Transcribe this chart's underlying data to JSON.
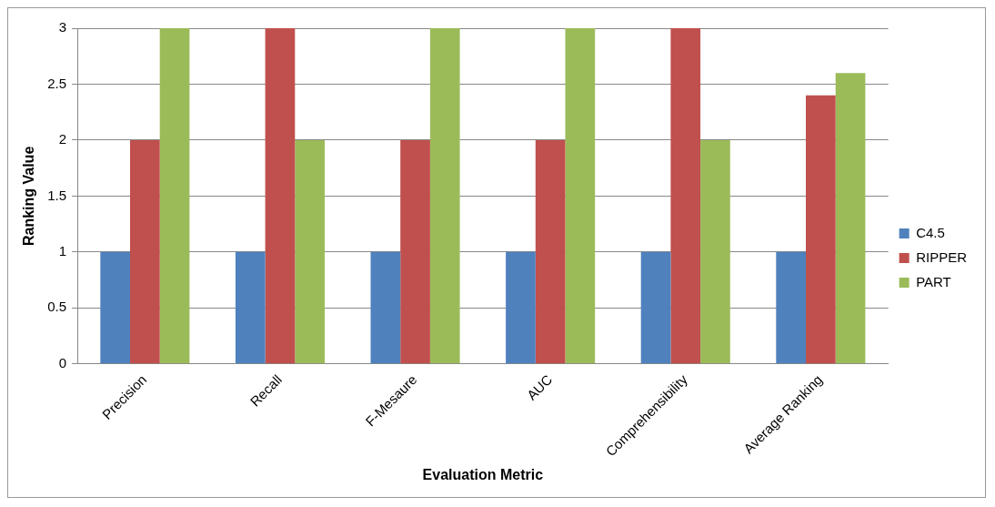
{
  "chart_data": {
    "type": "bar",
    "categories": [
      "Precision",
      "Recall",
      "F-Mesaure",
      "AUC",
      "Comprehensibility",
      "Average Ranking"
    ],
    "series": [
      {
        "name": "C4.5",
        "color": "#4f81bd",
        "values": [
          1,
          1,
          1,
          1,
          1,
          1
        ]
      },
      {
        "name": "RIPPER",
        "color": "#c0504d",
        "values": [
          2,
          3,
          2,
          2,
          3,
          2.4
        ]
      },
      {
        "name": "PART",
        "color": "#9bbb59",
        "values": [
          3,
          2,
          3,
          3,
          2,
          2.6
        ]
      }
    ],
    "xlabel": "Evaluation Metric",
    "ylabel": "Ranking Value",
    "ylim": [
      0,
      3
    ],
    "yticks": [
      0,
      0.5,
      1,
      1.5,
      2,
      2.5,
      3
    ],
    "grid": "y",
    "legend": "right"
  }
}
